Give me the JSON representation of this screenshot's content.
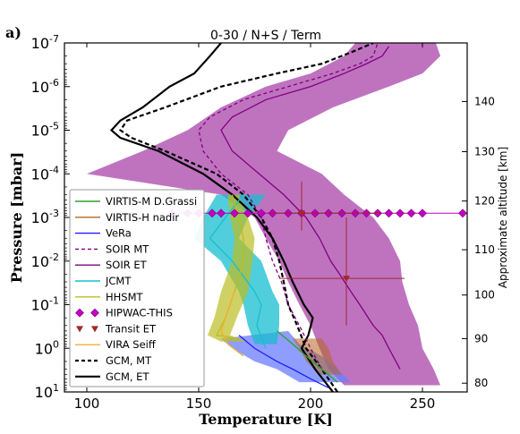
{
  "panel_label": "a)",
  "chart_data": {
    "type": "line",
    "title": "0-30 / N+S / Term",
    "xlabel": "Temperature [K]",
    "ylabel": "Pressure [mbar]",
    "y2label": "Approximate altitude [km]",
    "xlim": [
      90,
      270
    ],
    "ylim_mbar": [
      10,
      1e-07
    ],
    "y_scale": "log",
    "x_ticks": [
      100,
      150,
      200,
      250
    ],
    "y_ticks": [
      {
        "value": 10,
        "label": "10^1"
      },
      {
        "value": 1,
        "label": "10^0"
      },
      {
        "value": 0.1,
        "label": "10^-1"
      },
      {
        "value": 0.01,
        "label": "10^-2"
      },
      {
        "value": 0.001,
        "label": "10^-3"
      },
      {
        "value": 0.0001,
        "label": "10^-4"
      },
      {
        "value": 1e-05,
        "label": "10^-5"
      },
      {
        "value": 1e-06,
        "label": "10^-6"
      },
      {
        "value": 1e-07,
        "label": "10^-7"
      }
    ],
    "altitude_ticks": [
      {
        "km": 80,
        "mbar": 6.3
      },
      {
        "km": 90,
        "mbar": 0.6
      },
      {
        "km": 100,
        "mbar": 0.06
      },
      {
        "km": 110,
        "mbar": 0.0055
      },
      {
        "km": 120,
        "mbar": 0.00042
      },
      {
        "km": 130,
        "mbar": 3.1e-05
      },
      {
        "km": 140,
        "mbar": 2.2e-06
      }
    ],
    "legend_position": "lower-left",
    "legend": [
      {
        "label": "VIRTIS-M D.Grassi",
        "color": "#2ca02c",
        "style": "solid"
      },
      {
        "label": "VIRTIS-H nadir",
        "color": "#b5651d",
        "style": "solid"
      },
      {
        "label": "VeRa",
        "color": "#1f1fff",
        "style": "solid"
      },
      {
        "label": "SOIR MT",
        "color": "#800080",
        "style": "dashed"
      },
      {
        "label": "SOIR ET",
        "color": "#800080",
        "style": "solid"
      },
      {
        "label": "JCMT",
        "color": "#17becf",
        "style": "solid"
      },
      {
        "label": "HHSMT",
        "color": "#bcbd22",
        "style": "solid"
      },
      {
        "label": "HIPWAC-THIS",
        "color": "#c000c0",
        "style": "diamond"
      },
      {
        "label": "Transit ET",
        "color": "#a0282d",
        "style": "triangle"
      },
      {
        "label": "VIRA Seiff",
        "color": "#f0b030",
        "style": "solid"
      },
      {
        "label": "GCM, MT",
        "color": "#000000",
        "style": "dashed"
      },
      {
        "label": "GCM, ET",
        "color": "#000000",
        "style": "solid"
      }
    ],
    "series": [
      {
        "name": "GCM, MT",
        "color": "#000000",
        "dash": "dashed",
        "points": [
          [
            212,
            10
          ],
          [
            205,
            3
          ],
          [
            198,
            1
          ],
          [
            194,
            0.3
          ],
          [
            190,
            0.1
          ],
          [
            188,
            0.03
          ],
          [
            186,
            0.01
          ],
          [
            183,
            0.003
          ],
          [
            178,
            0.001
          ],
          [
            170,
            0.0003
          ],
          [
            158,
            0.0001
          ],
          [
            135,
            3e-05
          ],
          [
            120,
            1.5e-05
          ],
          [
            115,
            1e-05
          ],
          [
            118,
            6e-06
          ],
          [
            135,
            3e-06
          ],
          [
            160,
            1e-06
          ],
          [
            185,
            5e-07
          ],
          [
            205,
            3e-07
          ],
          [
            220,
            1.5e-07
          ],
          [
            228,
            1e-07
          ]
        ]
      },
      {
        "name": "GCM, ET",
        "color": "#000000",
        "dash": "solid",
        "points": [
          [
            210,
            10
          ],
          [
            202,
            3
          ],
          [
            196,
            1
          ],
          [
            199,
            0.5
          ],
          [
            201,
            0.2
          ],
          [
            197,
            0.1
          ],
          [
            192,
            0.03
          ],
          [
            188,
            0.01
          ],
          [
            183,
            0.003
          ],
          [
            176,
            0.001
          ],
          [
            165,
            0.0003
          ],
          [
            152,
            0.0001
          ],
          [
            132,
            3e-05
          ],
          [
            115,
            1.5e-05
          ],
          [
            111,
            1e-05
          ],
          [
            115,
            6e-06
          ],
          [
            125,
            3e-06
          ],
          [
            137,
            1e-06
          ],
          [
            148,
            5e-07
          ],
          [
            155,
            2e-07
          ],
          [
            160,
            1e-07
          ]
        ]
      },
      {
        "name": "SOIR MT",
        "color": "#800080",
        "dash": "dashed",
        "points": [
          [
            205,
            3
          ],
          [
            200,
            1
          ],
          [
            195,
            0.3
          ],
          [
            190,
            0.1
          ],
          [
            187,
            0.03
          ],
          [
            183,
            0.01
          ],
          [
            180,
            0.003
          ],
          [
            178,
            0.001
          ],
          [
            172,
            0.0003
          ],
          [
            160,
            0.0001
          ],
          [
            152,
            3e-05
          ],
          [
            150,
            1e-05
          ],
          [
            155,
            5e-06
          ],
          [
            170,
            2e-06
          ],
          [
            190,
            1e-06
          ],
          [
            210,
            5e-07
          ],
          [
            222,
            3e-07
          ],
          [
            228,
            2e-07
          ],
          [
            230,
            1e-07
          ]
        ]
      },
      {
        "name": "SOIR ET",
        "color": "#800080",
        "dash": "solid",
        "points": [
          [
            240,
            3
          ],
          [
            235,
            1
          ],
          [
            232,
            0.5
          ],
          [
            228,
            0.3
          ],
          [
            222,
            0.1
          ],
          [
            218,
            0.05
          ],
          [
            213,
            0.02
          ],
          [
            209,
            0.01
          ],
          [
            204,
            0.003
          ],
          [
            198,
            0.001
          ],
          [
            188,
            0.0003
          ],
          [
            177,
            0.0001
          ],
          [
            165,
            3e-05
          ],
          [
            160,
            1e-05
          ],
          [
            165,
            5e-06
          ],
          [
            180,
            2e-06
          ],
          [
            200,
            1e-06
          ],
          [
            215,
            5e-07
          ],
          [
            225,
            3e-07
          ],
          [
            232,
            2e-07
          ],
          [
            235,
            1.2e-07
          ]
        ]
      },
      {
        "name": "VeRa",
        "color": "#1f1fff",
        "dash": "solid",
        "points": [
          [
            168,
            0.5
          ],
          [
            175,
            1
          ],
          [
            185,
            2
          ],
          [
            192,
            3
          ],
          [
            200,
            5
          ],
          [
            208,
            8
          ]
        ]
      },
      {
        "name": "VIRTIS-M D.Grassi",
        "color": "#2ca02c",
        "dash": "solid",
        "points": [
          [
            185,
            0.4
          ],
          [
            192,
            0.8
          ],
          [
            198,
            1.5
          ],
          [
            205,
            3
          ],
          [
            212,
            6
          ]
        ]
      },
      {
        "name": "JCMT",
        "color": "#17becf",
        "dash": "solid",
        "points": [
          [
            170,
            0.0003
          ],
          [
            162,
            0.001
          ],
          [
            155,
            0.003
          ],
          [
            165,
            0.01
          ],
          [
            175,
            0.05
          ],
          [
            178,
            0.1
          ],
          [
            176,
            0.3
          ],
          [
            180,
            1
          ]
        ]
      },
      {
        "name": "HHSMT",
        "color": "#bcbd22",
        "dash": "solid",
        "points": [
          [
            165,
            0.0003
          ],
          [
            168,
            0.001
          ],
          [
            170,
            0.003
          ],
          [
            170,
            0.01
          ],
          [
            166,
            0.05
          ],
          [
            162,
            0.2
          ],
          [
            158,
            0.5
          ],
          [
            168,
            0.6
          ]
        ]
      },
      {
        "name": "VIRA Seiff",
        "color": "#f0b030",
        "dash": "solid",
        "points": [
          [
            166,
            0.05
          ],
          [
            164,
            0.1
          ],
          [
            162,
            0.2
          ],
          [
            160,
            0.4
          ],
          [
            163,
            0.8
          ],
          [
            170,
            1.5
          ]
        ]
      }
    ],
    "bands": [
      {
        "name": "SOIR ET",
        "color": "#8b008b",
        "opacity": 0.55,
        "left": [
          [
            215,
            7
          ],
          [
            208,
            3
          ],
          [
            204,
            1
          ],
          [
            200,
            0.3
          ],
          [
            195,
            0.1
          ],
          [
            190,
            0.03
          ],
          [
            186,
            0.01
          ],
          [
            180,
            0.003
          ],
          [
            175,
            0.001
          ],
          [
            160,
            0.0003
          ],
          [
            100,
            0.0001
          ],
          [
            125,
            3e-05
          ],
          [
            145,
            1e-05
          ],
          [
            160,
            3e-06
          ],
          [
            180,
            1e-06
          ],
          [
            200,
            5e-07
          ],
          [
            215,
            2e-07
          ],
          [
            220,
            1e-07
          ]
        ],
        "right": [
          [
            258,
            7
          ],
          [
            255,
            3
          ],
          [
            250,
            1
          ],
          [
            248,
            0.3
          ],
          [
            244,
            0.1
          ],
          [
            241,
            0.03
          ],
          [
            240,
            0.01
          ],
          [
            235,
            0.003
          ],
          [
            228,
            0.001
          ],
          [
            215,
            0.0003
          ],
          [
            205,
            0.0001
          ],
          [
            185,
            3e-05
          ],
          [
            190,
            1e-05
          ],
          [
            210,
            3e-06
          ],
          [
            235,
            1e-06
          ],
          [
            250,
            5e-07
          ],
          [
            258,
            2e-07
          ],
          [
            256,
            1e-07
          ]
        ]
      },
      {
        "name": "VeRa",
        "color": "#6a7cff",
        "opacity": 0.75,
        "left": [
          [
            160,
            0.6
          ],
          [
            165,
            1
          ],
          [
            175,
            2
          ],
          [
            185,
            3
          ],
          [
            195,
            6
          ]
        ],
        "right": [
          [
            190,
            0.4
          ],
          [
            195,
            0.8
          ],
          [
            205,
            1.5
          ],
          [
            212,
            3
          ],
          [
            218,
            6
          ]
        ]
      },
      {
        "name": "JCMT",
        "color": "#17becf",
        "opacity": 0.75,
        "left": [
          [
            158,
            0.0003
          ],
          [
            152,
            0.001
          ],
          [
            148,
            0.003
          ],
          [
            160,
            0.01
          ],
          [
            168,
            0.05
          ],
          [
            170,
            0.1
          ],
          [
            172,
            0.3
          ],
          [
            175,
            0.8
          ]
        ],
        "right": [
          [
            180,
            0.0003
          ],
          [
            172,
            0.001
          ],
          [
            168,
            0.003
          ],
          [
            178,
            0.01
          ],
          [
            183,
            0.05
          ],
          [
            186,
            0.1
          ],
          [
            186,
            0.3
          ],
          [
            185,
            0.8
          ]
        ]
      },
      {
        "name": "HHSMT",
        "color": "#bcbd22",
        "opacity": 0.7,
        "left": [
          [
            163,
            0.0003
          ],
          [
            164,
            0.001
          ],
          [
            166,
            0.003
          ],
          [
            165,
            0.01
          ],
          [
            160,
            0.05
          ],
          [
            157,
            0.2
          ],
          [
            154,
            0.5
          ],
          [
            160,
            0.7
          ]
        ],
        "right": [
          [
            168,
            0.0003
          ],
          [
            172,
            0.001
          ],
          [
            175,
            0.003
          ],
          [
            174,
            0.01
          ],
          [
            172,
            0.05
          ],
          [
            167,
            0.2
          ],
          [
            164,
            0.5
          ],
          [
            172,
            0.7
          ]
        ]
      },
      {
        "name": "VIRTIS-H nadir",
        "color": "#b5651d",
        "opacity": 0.55,
        "left": [
          [
            192,
            0.6
          ],
          [
            195,
            1
          ],
          [
            198,
            2
          ],
          [
            204,
            4
          ]
        ],
        "right": [
          [
            205,
            0.6
          ],
          [
            208,
            1
          ],
          [
            210,
            2
          ],
          [
            214,
            4
          ]
        ]
      }
    ],
    "hipwac_points": {
      "pressure_mbar": 0.0008,
      "temperatures": [
        138,
        145,
        150,
        156,
        160,
        166,
        172,
        178,
        183,
        190,
        196,
        202,
        208,
        214,
        220,
        225,
        230,
        235,
        240,
        245,
        250,
        268
      ]
    },
    "transit_points": [
      {
        "temperature": 196,
        "pressure_mbar": 0.0008,
        "xerr": [
          182,
          232
        ],
        "yerr": [
          0.00015,
          0.002
        ]
      },
      {
        "temperature": 216,
        "pressure_mbar": 0.025,
        "xerr": [
          186,
          242
        ],
        "yerr": [
          0.001,
          0.3
        ]
      }
    ]
  }
}
